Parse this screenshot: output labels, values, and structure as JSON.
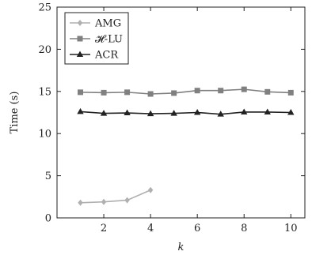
{
  "chart_data": {
    "type": "line",
    "xlabel": "k",
    "ylabel": "Time (s)",
    "xlim": [
      0,
      10.6
    ],
    "ylim": [
      0,
      25
    ],
    "xticks": [
      2,
      4,
      6,
      8,
      10
    ],
    "yticks": [
      0,
      5,
      10,
      15,
      20,
      25
    ],
    "grid": false,
    "legend_position": "top-left",
    "series": [
      {
        "name": "AMG",
        "color": "#b0b0b0",
        "marker": "diamond",
        "x": [
          1,
          2,
          3,
          4
        ],
        "y": [
          1.8,
          1.9,
          2.1,
          3.3
        ]
      },
      {
        "name": "𝓗-LU",
        "color": "#808080",
        "marker": "square",
        "x": [
          1,
          2,
          3,
          4,
          5,
          6,
          7,
          8,
          9,
          10
        ],
        "y": [
          14.9,
          14.85,
          14.9,
          14.7,
          14.8,
          15.1,
          15.1,
          15.25,
          14.95,
          14.85
        ]
      },
      {
        "name": "ACR",
        "color": "#222222",
        "marker": "triangle",
        "x": [
          1,
          2,
          3,
          4,
          5,
          6,
          7,
          8,
          9,
          10
        ],
        "y": [
          12.6,
          12.4,
          12.45,
          12.35,
          12.4,
          12.5,
          12.3,
          12.55,
          12.55,
          12.5
        ]
      }
    ]
  }
}
